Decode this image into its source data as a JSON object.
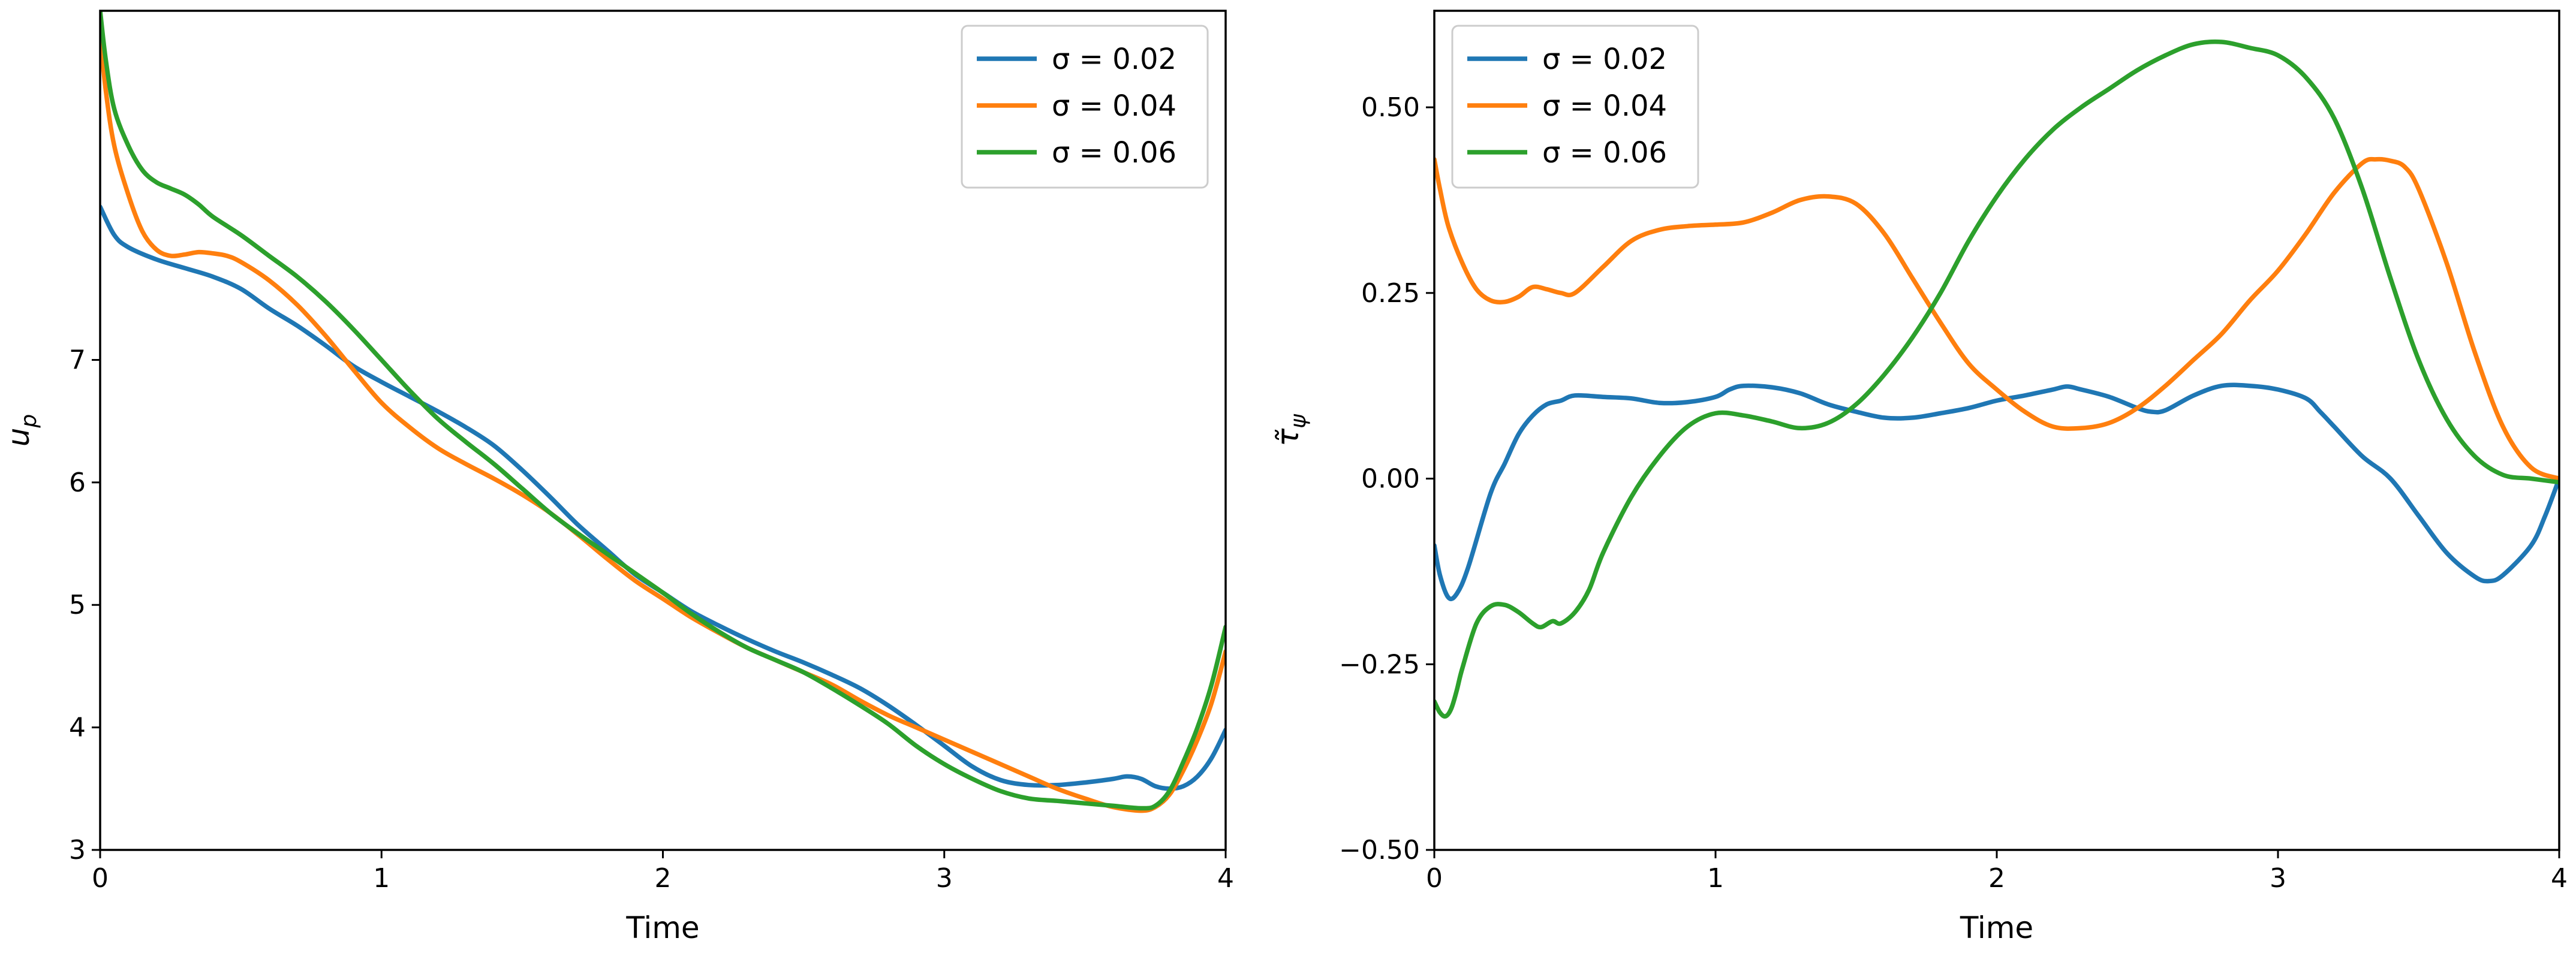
{
  "chart_data": [
    {
      "type": "line",
      "title": "",
      "xlabel": "Time",
      "ylabel": "u_p",
      "xlim": [
        0,
        4
      ],
      "ylim": [
        3,
        9.85
      ],
      "xticks": [
        0,
        1,
        2,
        3,
        4
      ],
      "xtick_labels": [
        "0",
        "1",
        "2",
        "3",
        "4"
      ],
      "yticks": [
        3,
        4,
        5,
        6,
        7
      ],
      "ytick_labels": [
        "3",
        "4",
        "5",
        "6",
        "7"
      ],
      "legend_position": "top-right",
      "series": [
        {
          "name": "σ = 0.02",
          "color": "#1f77b4",
          "x": [
            0,
            0.05,
            0.1,
            0.2,
            0.3,
            0.4,
            0.5,
            0.6,
            0.7,
            0.8,
            0.9,
            1.0,
            1.1,
            1.2,
            1.3,
            1.4,
            1.5,
            1.6,
            1.7,
            1.8,
            1.9,
            2.0,
            2.1,
            2.2,
            2.3,
            2.4,
            2.5,
            2.6,
            2.7,
            2.8,
            2.9,
            3.0,
            3.1,
            3.2,
            3.3,
            3.4,
            3.5,
            3.6,
            3.65,
            3.7,
            3.75,
            3.8,
            3.85,
            3.9,
            3.95,
            4.0
          ],
          "y": [
            8.25,
            8.02,
            7.92,
            7.82,
            7.75,
            7.68,
            7.58,
            7.42,
            7.28,
            7.12,
            6.95,
            6.82,
            6.7,
            6.58,
            6.45,
            6.3,
            6.1,
            5.88,
            5.65,
            5.45,
            5.25,
            5.1,
            4.95,
            4.83,
            4.72,
            4.62,
            4.53,
            4.43,
            4.32,
            4.18,
            4.02,
            3.85,
            3.68,
            3.57,
            3.53,
            3.53,
            3.55,
            3.58,
            3.6,
            3.58,
            3.52,
            3.5,
            3.52,
            3.6,
            3.75,
            3.98
          ]
        },
        {
          "name": "σ = 0.04",
          "color": "#ff7f0e",
          "x": [
            0,
            0.02,
            0.05,
            0.1,
            0.15,
            0.2,
            0.25,
            0.3,
            0.35,
            0.4,
            0.45,
            0.5,
            0.6,
            0.7,
            0.8,
            0.9,
            1.0,
            1.1,
            1.2,
            1.3,
            1.4,
            1.5,
            1.6,
            1.7,
            1.8,
            1.9,
            2.0,
            2.1,
            2.2,
            2.3,
            2.4,
            2.5,
            2.6,
            2.7,
            2.8,
            2.9,
            3.0,
            3.1,
            3.2,
            3.3,
            3.4,
            3.5,
            3.6,
            3.7,
            3.75,
            3.8,
            3.85,
            3.9,
            3.95,
            4.0
          ],
          "y": [
            9.65,
            9.2,
            8.75,
            8.35,
            8.05,
            7.9,
            7.85,
            7.86,
            7.88,
            7.87,
            7.85,
            7.8,
            7.65,
            7.45,
            7.2,
            6.92,
            6.65,
            6.45,
            6.28,
            6.15,
            6.03,
            5.9,
            5.75,
            5.57,
            5.38,
            5.2,
            5.05,
            4.9,
            4.77,
            4.65,
            4.55,
            4.45,
            4.35,
            4.22,
            4.1,
            4.0,
            3.9,
            3.8,
            3.7,
            3.6,
            3.5,
            3.42,
            3.35,
            3.32,
            3.35,
            3.45,
            3.65,
            3.9,
            4.2,
            4.62
          ]
        },
        {
          "name": "σ = 0.06",
          "color": "#2ca02c",
          "x": [
            0,
            0.02,
            0.05,
            0.1,
            0.15,
            0.2,
            0.25,
            0.3,
            0.35,
            0.4,
            0.5,
            0.6,
            0.7,
            0.8,
            0.9,
            1.0,
            1.1,
            1.2,
            1.3,
            1.4,
            1.5,
            1.6,
            1.7,
            1.8,
            1.9,
            2.0,
            2.1,
            2.2,
            2.3,
            2.4,
            2.5,
            2.6,
            2.7,
            2.8,
            2.9,
            3.0,
            3.1,
            3.2,
            3.3,
            3.4,
            3.5,
            3.6,
            3.7,
            3.75,
            3.8,
            3.85,
            3.9,
            3.95,
            4.0
          ],
          "y": [
            9.85,
            9.45,
            9.05,
            8.75,
            8.55,
            8.45,
            8.4,
            8.35,
            8.27,
            8.17,
            8.02,
            7.85,
            7.68,
            7.48,
            7.25,
            7.0,
            6.75,
            6.52,
            6.33,
            6.15,
            5.95,
            5.75,
            5.58,
            5.42,
            5.26,
            5.1,
            4.93,
            4.78,
            4.65,
            4.55,
            4.45,
            4.32,
            4.18,
            4.03,
            3.85,
            3.7,
            3.58,
            3.48,
            3.42,
            3.4,
            3.38,
            3.36,
            3.34,
            3.36,
            3.48,
            3.72,
            4.0,
            4.35,
            4.82
          ]
        }
      ]
    },
    {
      "type": "line",
      "title": "",
      "xlabel": "Time",
      "ylabel": "τ̃_ψ",
      "xlim": [
        0,
        4
      ],
      "ylim": [
        -0.5,
        0.63
      ],
      "xticks": [
        0,
        1,
        2,
        3,
        4
      ],
      "xtick_labels": [
        "0",
        "1",
        "2",
        "3",
        "4"
      ],
      "yticks": [
        -0.5,
        -0.25,
        0,
        0.25,
        0.5
      ],
      "ytick_labels": [
        "−0.50",
        "−0.25",
        "0.00",
        "0.25",
        "0.50"
      ],
      "legend_position": "top-left",
      "series": [
        {
          "name": "σ = 0.02",
          "color": "#1f77b4",
          "x": [
            0,
            0.02,
            0.05,
            0.08,
            0.12,
            0.2,
            0.25,
            0.3,
            0.35,
            0.4,
            0.45,
            0.5,
            0.6,
            0.7,
            0.8,
            0.9,
            1.0,
            1.05,
            1.1,
            1.2,
            1.3,
            1.4,
            1.5,
            1.6,
            1.7,
            1.8,
            1.9,
            2.0,
            2.1,
            2.2,
            2.25,
            2.3,
            2.4,
            2.5,
            2.55,
            2.6,
            2.7,
            2.8,
            2.9,
            3.0,
            3.1,
            3.15,
            3.2,
            3.3,
            3.4,
            3.5,
            3.6,
            3.7,
            3.75,
            3.8,
            3.9,
            3.95,
            4.0
          ],
          "y": [
            -0.09,
            -0.13,
            -0.16,
            -0.155,
            -0.12,
            -0.02,
            0.02,
            0.06,
            0.085,
            0.1,
            0.105,
            0.112,
            0.11,
            0.108,
            0.102,
            0.103,
            0.11,
            0.12,
            0.125,
            0.123,
            0.115,
            0.1,
            0.09,
            0.082,
            0.082,
            0.088,
            0.095,
            0.105,
            0.112,
            0.12,
            0.124,
            0.12,
            0.11,
            0.095,
            0.09,
            0.092,
            0.112,
            0.125,
            0.125,
            0.12,
            0.108,
            0.09,
            0.07,
            0.03,
            0.0,
            -0.05,
            -0.1,
            -0.132,
            -0.138,
            -0.13,
            -0.09,
            -0.05,
            -0.0
          ]
        },
        {
          "name": "σ = 0.04",
          "color": "#ff7f0e",
          "x": [
            0,
            0.02,
            0.05,
            0.1,
            0.15,
            0.2,
            0.25,
            0.3,
            0.35,
            0.4,
            0.45,
            0.5,
            0.6,
            0.7,
            0.8,
            0.9,
            1.0,
            1.1,
            1.2,
            1.3,
            1.4,
            1.5,
            1.6,
            1.7,
            1.8,
            1.9,
            2.0,
            2.1,
            2.2,
            2.3,
            2.4,
            2.5,
            2.6,
            2.7,
            2.8,
            2.9,
            3.0,
            3.1,
            3.2,
            3.3,
            3.35,
            3.4,
            3.45,
            3.5,
            3.6,
            3.7,
            3.8,
            3.9,
            4.0
          ],
          "y": [
            0.43,
            0.39,
            0.34,
            0.29,
            0.255,
            0.24,
            0.238,
            0.245,
            0.258,
            0.255,
            0.25,
            0.25,
            0.285,
            0.32,
            0.335,
            0.34,
            0.342,
            0.345,
            0.358,
            0.375,
            0.38,
            0.37,
            0.33,
            0.27,
            0.21,
            0.155,
            0.12,
            0.09,
            0.07,
            0.068,
            0.075,
            0.095,
            0.125,
            0.16,
            0.195,
            0.24,
            0.28,
            0.33,
            0.385,
            0.425,
            0.43,
            0.428,
            0.42,
            0.39,
            0.29,
            0.17,
            0.07,
            0.015,
            -0.0
          ]
        },
        {
          "name": "σ = 0.06",
          "color": "#2ca02c",
          "x": [
            0,
            0.02,
            0.04,
            0.06,
            0.08,
            0.1,
            0.15,
            0.2,
            0.25,
            0.3,
            0.35,
            0.38,
            0.42,
            0.45,
            0.5,
            0.55,
            0.6,
            0.7,
            0.8,
            0.9,
            1.0,
            1.1,
            1.2,
            1.3,
            1.4,
            1.5,
            1.6,
            1.7,
            1.8,
            1.9,
            2.0,
            2.1,
            2.2,
            2.3,
            2.4,
            2.5,
            2.6,
            2.7,
            2.8,
            2.9,
            3.0,
            3.1,
            3.2,
            3.3,
            3.4,
            3.5,
            3.6,
            3.7,
            3.8,
            3.9,
            4.0
          ],
          "y": [
            -0.3,
            -0.315,
            -0.32,
            -0.31,
            -0.285,
            -0.255,
            -0.195,
            -0.172,
            -0.17,
            -0.18,
            -0.195,
            -0.2,
            -0.192,
            -0.195,
            -0.18,
            -0.15,
            -0.1,
            -0.025,
            0.03,
            0.07,
            0.088,
            0.085,
            0.077,
            0.068,
            0.075,
            0.1,
            0.14,
            0.19,
            0.25,
            0.32,
            0.38,
            0.43,
            0.47,
            0.5,
            0.525,
            0.55,
            0.57,
            0.585,
            0.588,
            0.58,
            0.57,
            0.54,
            0.485,
            0.39,
            0.27,
            0.16,
            0.08,
            0.03,
            0.005,
            -0.0,
            -0.005
          ]
        }
      ]
    }
  ]
}
